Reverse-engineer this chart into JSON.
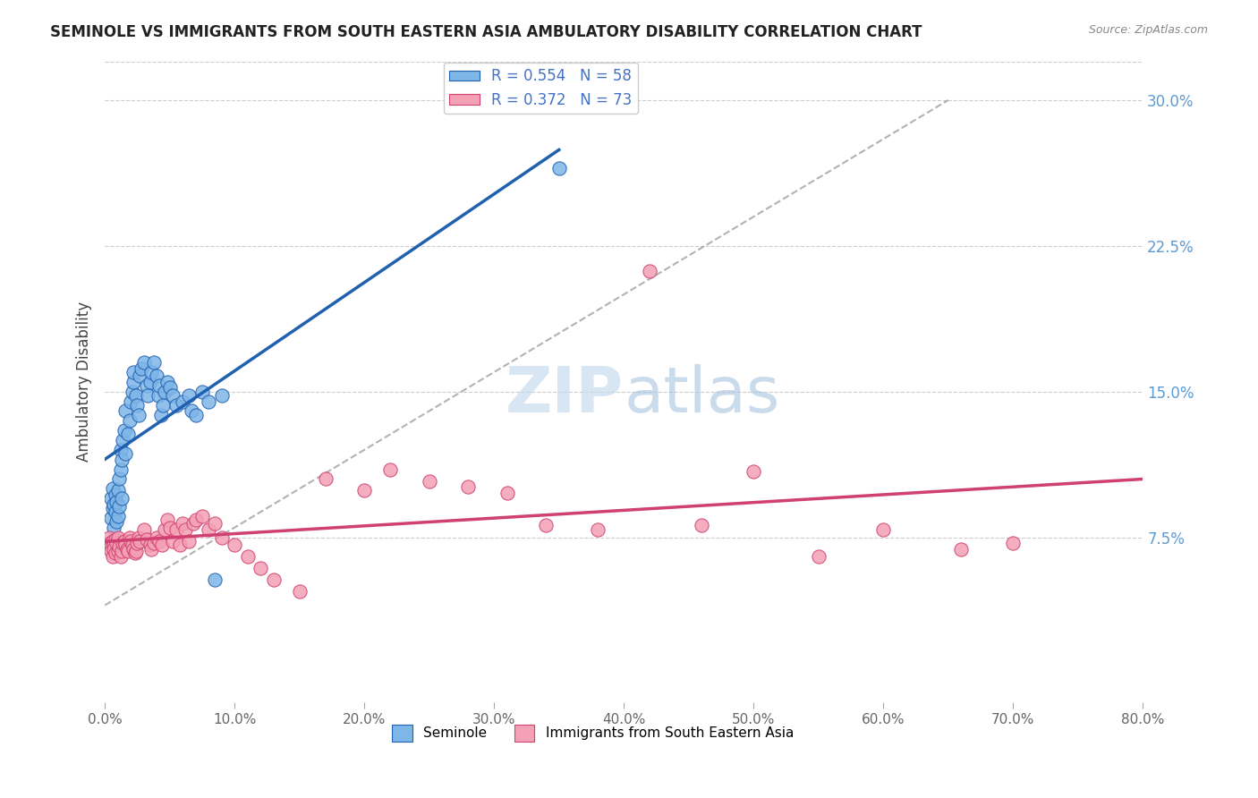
{
  "title": "SEMINOLE VS IMMIGRANTS FROM SOUTH EASTERN ASIA AMBULATORY DISABILITY CORRELATION CHART",
  "source": "Source: ZipAtlas.com",
  "ylabel": "Ambulatory Disability",
  "right_yticks": [
    0.075,
    0.15,
    0.225,
    0.3
  ],
  "right_yticklabels": [
    "7.5%",
    "15.0%",
    "22.5%",
    "30.0%"
  ],
  "xlim": [
    0.0,
    0.8
  ],
  "ylim": [
    -0.01,
    0.32
  ],
  "legend_R1": "0.554",
  "legend_N1": "58",
  "legend_R2": "0.372",
  "legend_N2": "73",
  "color_blue": "#7EB6E8",
  "color_blue_line": "#2060B0",
  "color_pink": "#F4A0B5",
  "color_pink_line": "#D04070",
  "color_legend_text": "#4472C4",
  "background": "#FFFFFF",
  "seminole_x": [
    0.005,
    0.005,
    0.006,
    0.006,
    0.007,
    0.007,
    0.008,
    0.008,
    0.009,
    0.009,
    0.01,
    0.01,
    0.011,
    0.011,
    0.012,
    0.012,
    0.013,
    0.013,
    0.014,
    0.015,
    0.016,
    0.016,
    0.018,
    0.019,
    0.02,
    0.021,
    0.022,
    0.022,
    0.024,
    0.025,
    0.026,
    0.027,
    0.028,
    0.03,
    0.032,
    0.033,
    0.035,
    0.036,
    0.038,
    0.04,
    0.041,
    0.042,
    0.043,
    0.045,
    0.046,
    0.048,
    0.05,
    0.052,
    0.055,
    0.06,
    0.065,
    0.067,
    0.07,
    0.075,
    0.08,
    0.085,
    0.09,
    0.35
  ],
  "seminole_y": [
    0.085,
    0.095,
    0.09,
    0.1,
    0.08,
    0.092,
    0.088,
    0.097,
    0.083,
    0.093,
    0.086,
    0.099,
    0.091,
    0.105,
    0.11,
    0.12,
    0.095,
    0.115,
    0.125,
    0.13,
    0.118,
    0.14,
    0.128,
    0.135,
    0.145,
    0.15,
    0.155,
    0.16,
    0.148,
    0.143,
    0.138,
    0.158,
    0.162,
    0.165,
    0.153,
    0.148,
    0.155,
    0.16,
    0.165,
    0.158,
    0.148,
    0.153,
    0.138,
    0.143,
    0.15,
    0.155,
    0.152,
    0.148,
    0.143,
    0.145,
    0.148,
    0.14,
    0.138,
    0.15,
    0.145,
    0.053,
    0.148,
    0.265
  ],
  "immigrants_x": [
    0.003,
    0.004,
    0.005,
    0.005,
    0.006,
    0.006,
    0.007,
    0.007,
    0.008,
    0.008,
    0.009,
    0.01,
    0.01,
    0.011,
    0.012,
    0.013,
    0.014,
    0.015,
    0.016,
    0.017,
    0.018,
    0.019,
    0.02,
    0.021,
    0.022,
    0.023,
    0.024,
    0.025,
    0.026,
    0.027,
    0.03,
    0.032,
    0.035,
    0.036,
    0.038,
    0.04,
    0.042,
    0.044,
    0.046,
    0.048,
    0.05,
    0.052,
    0.055,
    0.058,
    0.06,
    0.062,
    0.065,
    0.068,
    0.07,
    0.075,
    0.08,
    0.085,
    0.09,
    0.1,
    0.11,
    0.12,
    0.13,
    0.15,
    0.17,
    0.2,
    0.22,
    0.25,
    0.28,
    0.31,
    0.34,
    0.38,
    0.42,
    0.46,
    0.5,
    0.55,
    0.6,
    0.66,
    0.7
  ],
  "immigrants_y": [
    0.075,
    0.072,
    0.07,
    0.068,
    0.073,
    0.065,
    0.071,
    0.069,
    0.074,
    0.067,
    0.072,
    0.068,
    0.075,
    0.07,
    0.065,
    0.068,
    0.072,
    0.073,
    0.071,
    0.069,
    0.068,
    0.075,
    0.073,
    0.071,
    0.069,
    0.067,
    0.068,
    0.072,
    0.075,
    0.073,
    0.079,
    0.074,
    0.071,
    0.069,
    0.072,
    0.075,
    0.073,
    0.071,
    0.079,
    0.084,
    0.08,
    0.073,
    0.079,
    0.071,
    0.082,
    0.079,
    0.073,
    0.082,
    0.084,
    0.086,
    0.079,
    0.082,
    0.075,
    0.071,
    0.065,
    0.059,
    0.053,
    0.047,
    0.105,
    0.099,
    0.11,
    0.104,
    0.101,
    0.098,
    0.081,
    0.079,
    0.212,
    0.081,
    0.109,
    0.065,
    0.079,
    0.069,
    0.072
  ]
}
